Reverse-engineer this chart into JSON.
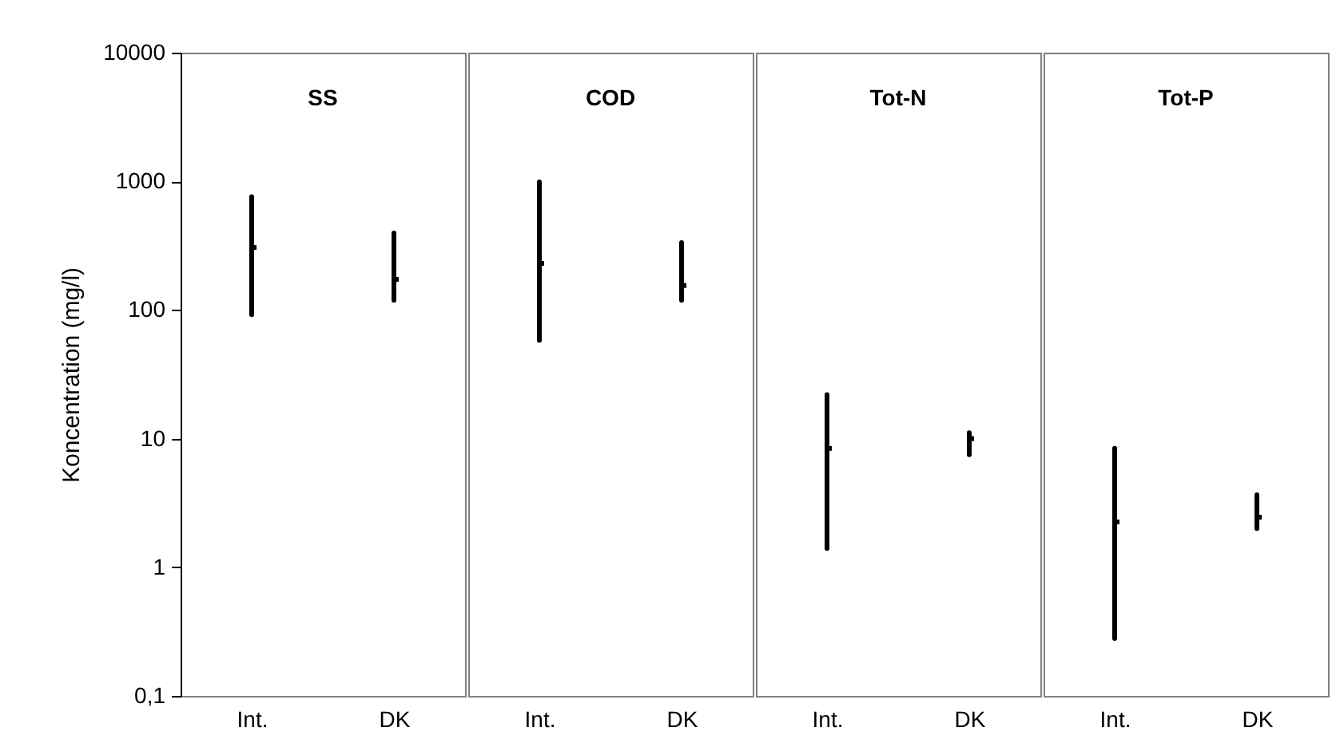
{
  "chart_data": [
    {
      "type": "scatter",
      "title": "SS",
      "ylabel": "Koncentration (mg/l)",
      "categories": [
        "Int.",
        "DK"
      ],
      "color": "#000000",
      "log": true,
      "ylim": [
        0.1,
        10000
      ],
      "yticks": [
        {
          "value": 0.1,
          "label": "0,1"
        },
        1,
        10,
        100,
        1000,
        10000
      ],
      "values": [
        306,
        173
      ],
      "errors": [
        [
          92,
          760
        ],
        [
          119,
          396
        ]
      ]
    },
    {
      "type": "scatter",
      "title": "COD",
      "categories": [
        "Int.",
        "DK"
      ],
      "color": "#000000",
      "log": true,
      "ylim": [
        0.1,
        10000
      ],
      "tick_labels": "x",
      "values": [
        230,
        155
      ],
      "errors": [
        [
          58,
          988
        ],
        [
          119,
          334
        ]
      ]
    },
    {
      "type": "scatter",
      "title": "Tot-N",
      "categories": [
        "Int.",
        "DK"
      ],
      "color": "#000000",
      "log": true,
      "ylim": [
        0.1,
        10000
      ],
      "tick_labels": "x",
      "values": [
        8.4,
        10
      ],
      "errors": [
        [
          1.4,
          22
        ],
        [
          7.5,
          11.1
        ]
      ]
    },
    {
      "type": "scatter",
      "title": "Tot-P",
      "categories": [
        "Int.",
        "DK"
      ],
      "color": "#000000",
      "log": true,
      "ylim": [
        0.1,
        10000
      ],
      "tick_labels": "x",
      "values": [
        2.25,
        2.45
      ],
      "errors": [
        [
          0.28,
          8.4
        ],
        [
          2.0,
          3.66
        ]
      ]
    }
  ]
}
